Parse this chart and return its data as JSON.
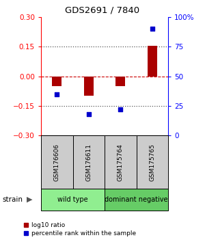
{
  "title": "GDS2691 / 7840",
  "samples": [
    "GSM176606",
    "GSM176611",
    "GSM175764",
    "GSM175765"
  ],
  "log10_ratio": [
    -0.05,
    -0.1,
    -0.05,
    0.155
  ],
  "percentile_rank": [
    35,
    18,
    22,
    90
  ],
  "groups": [
    {
      "label": "wild type",
      "samples": [
        0,
        1
      ],
      "color": "#90ee90"
    },
    {
      "label": "dominant negative",
      "samples": [
        2,
        3
      ],
      "color": "#66cc66"
    }
  ],
  "ylim_left": [
    -0.3,
    0.3
  ],
  "ylim_right": [
    0,
    100
  ],
  "yticks_left": [
    -0.3,
    -0.15,
    0,
    0.15,
    0.3
  ],
  "yticks_right_vals": [
    0,
    25,
    50,
    75,
    100
  ],
  "yticks_right_labels": [
    "0",
    "25",
    "50",
    "75",
    "100%"
  ],
  "bar_color": "#aa0000",
  "scatter_color": "#0000cc",
  "hline_color": "#cc0000",
  "dotted_color": "#555555",
  "sample_box_color": "#cccccc",
  "strain_label": "strain",
  "legend_ratio_label": "log10 ratio",
  "legend_pct_label": "percentile rank within the sample",
  "background_color": "#ffffff"
}
